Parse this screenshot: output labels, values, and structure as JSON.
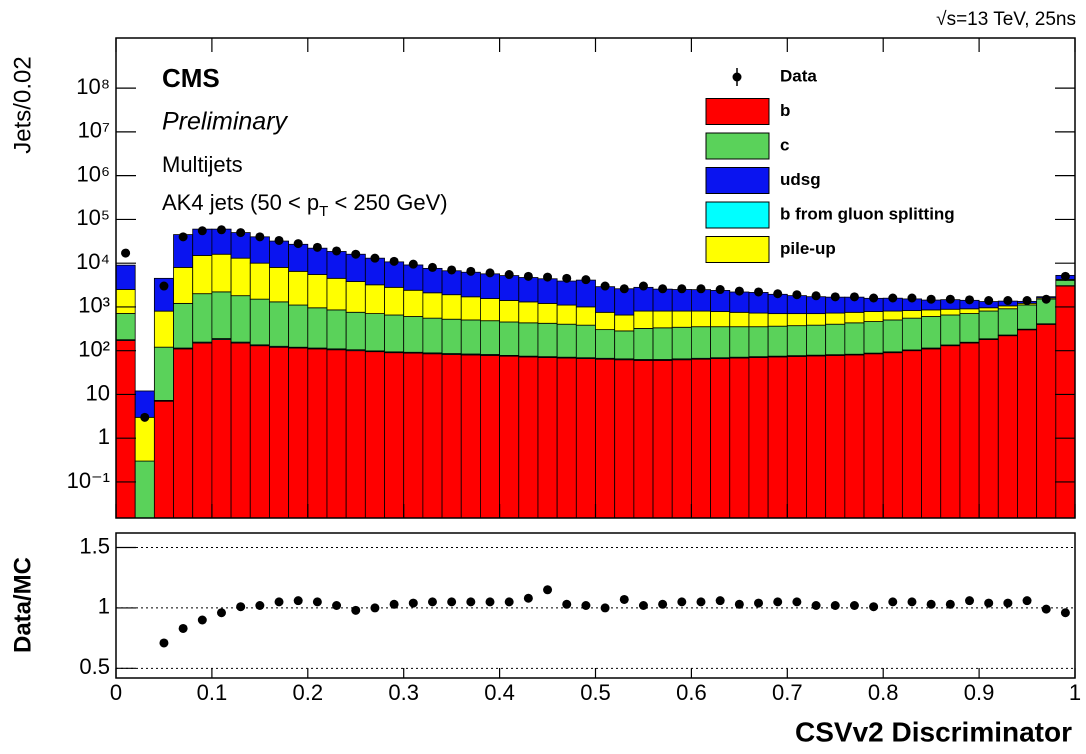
{
  "chart_data": {
    "type": "stacked_histogram",
    "energy_label": "√s=13 TeV, 25ns",
    "experiment": "CMS",
    "status": "Preliminary",
    "selection": "Multijets",
    "jets": [
      "AK4 jets (50 < p",
      "T",
      " < 250 GeV)"
    ],
    "ylabel": "Jets/0.02",
    "xlabel": "CSVv2 Discriminator",
    "log_y": true,
    "bins": [
      0,
      0.02,
      0.04,
      0.06,
      0.08,
      0.1,
      0.12,
      0.14,
      0.16,
      0.18,
      0.2,
      0.22,
      0.24,
      0.26,
      0.28,
      0.3,
      0.32,
      0.34,
      0.36,
      0.38,
      0.4,
      0.42,
      0.44,
      0.46,
      0.48,
      0.5,
      0.52,
      0.54,
      0.56,
      0.58,
      0.6,
      0.62,
      0.64,
      0.66,
      0.68,
      0.7,
      0.72,
      0.74,
      0.76,
      0.78,
      0.8,
      0.82,
      0.84,
      0.86,
      0.88,
      0.9,
      0.92,
      0.94,
      0.96,
      0.98,
      1
    ],
    "xlim": [
      0,
      1
    ],
    "xticks": [
      0,
      0.1,
      0.2,
      0.3,
      0.4,
      0.5,
      0.6,
      0.7,
      0.8,
      0.9,
      1
    ],
    "ylim": [
      0.015,
      1400000000
    ],
    "yticks": [
      {
        "value": 0.1,
        "label": "10⁻¹"
      },
      1,
      10,
      {
        "value": 100,
        "label": "10²"
      },
      {
        "value": 1000,
        "label": "10³"
      },
      {
        "value": 10000,
        "label": "10⁴"
      },
      {
        "value": 100000,
        "label": "10⁵"
      },
      {
        "value": 1000000,
        "label": "10⁶"
      },
      {
        "value": 10000000,
        "label": "10⁷"
      },
      {
        "value": 100000000,
        "label": "10⁸"
      }
    ],
    "series": [
      {
        "name": "b",
        "color": "#ff0000",
        "values": [
          170,
          0,
          7,
          110,
          150,
          180,
          150,
          130,
          120,
          115,
          110,
          105,
          100,
          95,
          90,
          88,
          85,
          82,
          80,
          78,
          75,
          72,
          70,
          68,
          66,
          64,
          62,
          60,
          60,
          62,
          64,
          66,
          68,
          70,
          72,
          74,
          76,
          78,
          80,
          85,
          90,
          100,
          110,
          130,
          150,
          180,
          220,
          300,
          400,
          3000
        ]
      },
      {
        "name": "c",
        "color": "#5ad25a",
        "values": [
          530,
          0.3,
          113,
          1090,
          1850,
          2020,
          1650,
          1370,
          1180,
          985,
          840,
          745,
          650,
          605,
          560,
          512,
          465,
          438,
          420,
          402,
          375,
          358,
          350,
          332,
          314,
          236,
          218,
          260,
          270,
          278,
          286,
          284,
          282,
          280,
          288,
          296,
          304,
          322,
          350,
          375,
          410,
          450,
          490,
          520,
          550,
          620,
          680,
          800,
          1100,
          1000
        ]
      },
      {
        "name": "udsg",
        "color": "#0a14f0",
        "values": [
          6500,
          9,
          3700,
          37000,
          45000,
          44000,
          37000,
          30000,
          24000,
          20500,
          16500,
          14000,
          12200,
          9800,
          7900,
          6700,
          5500,
          4800,
          4500,
          4150,
          3800,
          3400,
          3200,
          2800,
          3100,
          2150,
          1950,
          2000,
          1750,
          1700,
          1680,
          1600,
          1440,
          1420,
          1240,
          1110,
          1010,
          950,
          920,
          790,
          780,
          700,
          580,
          580,
          510,
          370,
          300,
          130,
          100,
          1000
        ]
      },
      {
        "name": "b from gluon splitting",
        "color": "#00ffff",
        "values": [
          8,
          0,
          0.3,
          5,
          7,
          9,
          7,
          6,
          6,
          5,
          5,
          5,
          5,
          4,
          4,
          4,
          4,
          4,
          4,
          4,
          3,
          3,
          3,
          3,
          3,
          3,
          3,
          3,
          3,
          3,
          3,
          3,
          3,
          3,
          3,
          3,
          3,
          3,
          3,
          3,
          4,
          4,
          5,
          5,
          6,
          7,
          8,
          10,
          12,
          60
        ]
      },
      {
        "name": "pile-up",
        "color": "#ffff00",
        "values": [
          1800,
          2.7,
          680,
          6800,
          13000,
          13800,
          11200,
          8500,
          6700,
          5400,
          4550,
          3650,
          3050,
          2500,
          2150,
          1800,
          1550,
          1380,
          1200,
          1070,
          950,
          870,
          780,
          700,
          620,
          450,
          370,
          480,
          470,
          460,
          450,
          430,
          400,
          370,
          340,
          330,
          320,
          320,
          320,
          320,
          300,
          270,
          250,
          230,
          200,
          150,
          150,
          100,
          100,
          200
        ]
      }
    ],
    "stack_order": [
      0,
      3,
      1,
      4,
      2
    ],
    "data": {
      "name": "Data",
      "color": "#000000",
      "values": [
        17000,
        3,
        3000,
        40000,
        55000,
        58000,
        50000,
        40000,
        33000,
        28000,
        23000,
        19000,
        16000,
        13000,
        11000,
        9500,
        8000,
        7000,
        6500,
        6000,
        5500,
        5000,
        4800,
        4500,
        4200,
        3000,
        2600,
        3000,
        2600,
        2600,
        2600,
        2500,
        2300,
        2200,
        2000,
        1900,
        1800,
        1700,
        1700,
        1600,
        1600,
        1600,
        1500,
        1500,
        1450,
        1400,
        1400,
        1400,
        1500,
        5000
      ]
    },
    "ratio": {
      "ylabel": "Data/MC",
      "ylim": [
        0.42,
        1.62
      ],
      "yticks": [
        0.5,
        1,
        1.5
      ],
      "grid": true,
      "values": [
        null,
        null,
        0.71,
        0.83,
        0.9,
        0.96,
        1.01,
        1.02,
        1.05,
        1.06,
        1.05,
        1.02,
        0.98,
        1.0,
        1.03,
        1.04,
        1.05,
        1.05,
        1.05,
        1.05,
        1.05,
        1.08,
        1.15,
        1.03,
        1.02,
        1.0,
        1.07,
        1.02,
        1.03,
        1.05,
        1.05,
        1.06,
        1.03,
        1.04,
        1.05,
        1.05,
        1.02,
        1.02,
        1.02,
        1.01,
        1.05,
        1.05,
        1.03,
        1.03,
        1.06,
        1.04,
        1.04,
        1.06,
        0.99,
        0.96
      ]
    }
  }
}
